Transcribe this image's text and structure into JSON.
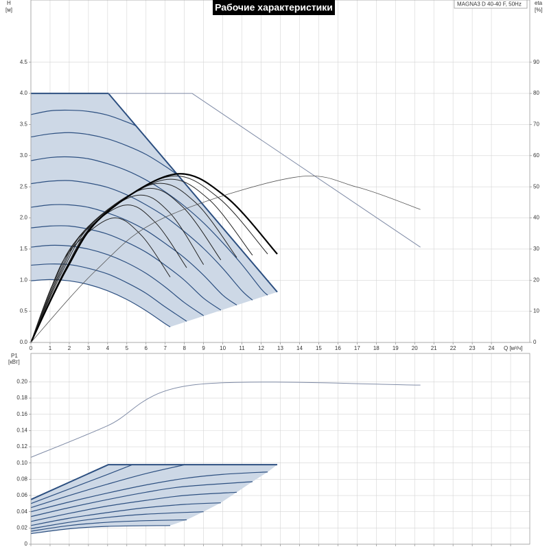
{
  "chart_data": [
    {
      "type": "line",
      "title": "Рабочие характеристики",
      "annotation": "MAGNA3 D 40-40 F, 50Hz",
      "ylabel": "H",
      "ylabel_unit": "[м]",
      "y2label": "eta",
      "y2label_unit": "[%]",
      "xlabel": "Q [м³/ч]",
      "xlim": [
        0,
        26
      ],
      "ylim": [
        0,
        5.5
      ],
      "y2lim": [
        0,
        110
      ],
      "grid": true,
      "xticks": [
        0,
        1,
        2,
        3,
        4,
        5,
        6,
        7,
        8,
        9,
        10,
        11,
        12,
        13,
        14,
        15,
        16,
        17,
        18,
        19,
        20,
        21,
        22,
        23,
        24
      ],
      "yticks": [
        {
          "value": 0,
          "label": "0.0"
        },
        0.5,
        {
          "value": 1,
          "label": "1.0"
        },
        1.5,
        {
          "value": 2,
          "label": "2.0"
        },
        2.5,
        {
          "value": 3,
          "label": "3.0"
        },
        3.5,
        {
          "value": 4,
          "label": "4.0"
        },
        4.5
      ],
      "y2ticks": [
        0,
        10,
        20,
        30,
        40,
        50,
        60,
        70,
        80,
        90
      ],
      "series": [
        {
          "kind": "area",
          "color": "#cdd8e6",
          "x": [
            0,
            4.04,
            12.84,
            7.26,
            7,
            6,
            5,
            4,
            3,
            2,
            1,
            0
          ],
          "values": [
            4,
            4,
            0.81,
            0.25,
            0.3,
            0.51,
            0.69,
            0.83,
            0.93,
            0.99,
            1.01,
            0.99
          ]
        },
        {
          "color": "#2c4f80",
          "width": 1.2,
          "smooth": true,
          "x": [
            0,
            1,
            2,
            3,
            4,
            5,
            6,
            7,
            7.26
          ],
          "values": [
            0.99,
            1.01,
            0.99,
            0.93,
            0.83,
            0.69,
            0.51,
            0.3,
            0.25
          ]
        },
        {
          "color": "#2c4f80",
          "width": 1.2,
          "smooth": true,
          "x": [
            0,
            1,
            2,
            3,
            4,
            5,
            6,
            7,
            8.12
          ],
          "values": [
            1.24,
            1.26,
            1.25,
            1.19,
            1.1,
            0.96,
            0.79,
            0.57,
            0.34
          ]
        },
        {
          "color": "#2c4f80",
          "width": 1.2,
          "smooth": true,
          "x": [
            0,
            1,
            2,
            3,
            4,
            5,
            6,
            7,
            8,
            9
          ],
          "values": [
            1.53,
            1.56,
            1.55,
            1.5,
            1.41,
            1.28,
            1.11,
            0.89,
            0.64,
            0.43
          ]
        },
        {
          "color": "#2c4f80",
          "width": 1.2,
          "smooth": true,
          "x": [
            0,
            1,
            2,
            3,
            4,
            5,
            6,
            7,
            8,
            9,
            9.9
          ],
          "values": [
            1.84,
            1.87,
            1.87,
            1.82,
            1.74,
            1.61,
            1.45,
            1.24,
            1.0,
            0.71,
            0.52
          ]
        },
        {
          "color": "#2c4f80",
          "width": 1.2,
          "smooth": true,
          "x": [
            0,
            1,
            2,
            3,
            4,
            5,
            6,
            7,
            8,
            9,
            10,
            10.73
          ],
          "values": [
            2.17,
            2.21,
            2.21,
            2.17,
            2.08,
            1.96,
            1.8,
            1.59,
            1.36,
            1.08,
            0.76,
            0.6
          ]
        },
        {
          "color": "#2c4f80",
          "width": 1.2,
          "smooth": true,
          "x": [
            0,
            1,
            2,
            3,
            4,
            5,
            6,
            7,
            8,
            9,
            10,
            11,
            11.55
          ],
          "values": [
            2.55,
            2.59,
            2.6,
            2.56,
            2.49,
            2.37,
            2.21,
            2.02,
            1.78,
            1.51,
            1.19,
            0.83,
            0.68
          ]
        },
        {
          "color": "#2c4f80",
          "width": 1.2,
          "smooth": true,
          "x": [
            0,
            1,
            2,
            3,
            4,
            5,
            6,
            7,
            8,
            9,
            10,
            11,
            12,
            12.34
          ],
          "values": [
            2.92,
            2.97,
            2.98,
            2.95,
            2.87,
            2.76,
            2.61,
            2.42,
            2.19,
            1.92,
            1.6,
            1.25,
            0.86,
            0.76
          ]
        },
        {
          "color": "#2c4f80",
          "width": 1.2,
          "smooth": true,
          "x": [
            0,
            1,
            2,
            3,
            4,
            5,
            6,
            7,
            7.65
          ],
          "values": [
            3.3,
            3.35,
            3.37,
            3.34,
            3.27,
            3.16,
            3.02,
            2.83,
            2.69
          ]
        },
        {
          "color": "#2c4f80",
          "width": 1.2,
          "smooth": true,
          "x": [
            0,
            1,
            2,
            3,
            4,
            5,
            5.47
          ],
          "values": [
            3.66,
            3.72,
            3.73,
            3.71,
            3.65,
            3.54,
            3.48
          ]
        },
        {
          "color": "#2c4f80",
          "width": 2,
          "smooth": false,
          "x": [
            0,
            4.04,
            12.84
          ],
          "values": [
            4,
            4,
            0.81
          ]
        },
        {
          "color": "#7f8ba6",
          "width": 1,
          "smooth": false,
          "x": [
            4.04,
            8.4,
            20.3
          ],
          "values": [
            4,
            4,
            1.53
          ]
        },
        {
          "axis": "y2",
          "color": "#222222",
          "width": 1,
          "smooth": true,
          "x": [
            0,
            1.05,
            2.1,
            4.2,
            5.73,
            7.26
          ],
          "values": [
            0,
            17.5,
            29.9,
            39.9,
            34.6,
            21
          ]
        },
        {
          "axis": "y2",
          "color": "#222222",
          "width": 1,
          "smooth": true,
          "x": [
            0,
            1.2,
            2.4,
            4.8,
            6.46,
            8.12
          ],
          "values": [
            0,
            19.3,
            33,
            44,
            38.7,
            24
          ]
        },
        {
          "axis": "y2",
          "color": "#222222",
          "width": 1,
          "smooth": true,
          "x": [
            0,
            1.35,
            2.7,
            5.4,
            7.2,
            9.0
          ],
          "values": [
            0,
            20.6,
            35.3,
            47.1,
            41.9,
            25
          ]
        },
        {
          "axis": "y2",
          "color": "#222222",
          "width": 1,
          "smooth": true,
          "x": [
            0,
            1.48,
            2.95,
            5.9,
            7.9,
            9.9
          ],
          "values": [
            0,
            21.6,
            37,
            49.3,
            43.6,
            26.5
          ]
        },
        {
          "axis": "y2",
          "color": "#222222",
          "width": 1,
          "smooth": true,
          "x": [
            0,
            1.6,
            3.2,
            6.4,
            8.57,
            10.73
          ],
          "values": [
            0,
            22.3,
            38.2,
            50.9,
            45,
            27.3
          ]
        },
        {
          "axis": "y2",
          "color": "#222222",
          "width": 1,
          "smooth": true,
          "x": [
            0,
            1.73,
            3.45,
            6.9,
            9.23,
            11.55
          ],
          "values": [
            0,
            22.8,
            39.2,
            52.2,
            46.2,
            28
          ]
        },
        {
          "axis": "y2",
          "color": "#222222",
          "width": 1,
          "smooth": true,
          "x": [
            0,
            1.8,
            3.6,
            7.2,
            9.77,
            12.34
          ],
          "values": [
            0,
            23.3,
            40,
            53.3,
            46.5,
            28.4
          ]
        },
        {
          "axis": "y2",
          "color": "#000000",
          "width": 2.2,
          "smooth": true,
          "x": [
            0,
            1.86,
            3.72,
            7.44,
            10.14,
            12.84
          ],
          "values": [
            0,
            23.6,
            40.5,
            54,
            46.9,
            28.4
          ]
        },
        {
          "axis": "y2",
          "color": "#555555",
          "width": 0.8,
          "smooth": true,
          "x": [
            0,
            3.4,
            6.85,
            13.7,
            17,
            20.3
          ],
          "values": [
            0,
            23.2,
            39.8,
            53,
            49.9,
            42.7
          ]
        }
      ]
    },
    {
      "type": "line",
      "ylabel": "P1",
      "ylabel_unit": "[кВт]",
      "xlim": [
        0,
        26
      ],
      "ylim": [
        0,
        0.235
      ],
      "grid": true,
      "xtick_labels": false,
      "xticks": [
        0,
        1,
        2,
        3,
        4,
        5,
        6,
        7,
        8,
        9,
        10,
        11,
        12,
        13,
        14,
        15,
        16,
        17,
        18,
        19,
        20,
        21,
        22,
        23,
        24,
        25
      ],
      "yticks": [
        0,
        0.02,
        0.04,
        0.06,
        0.08,
        {
          "value": 0.1,
          "label": "0.10"
        },
        0.12,
        0.14,
        0.16,
        0.18,
        {
          "value": 0.2,
          "label": "0.20"
        }
      ],
      "series": [
        {
          "kind": "area",
          "color": "#cdd8e6",
          "x": [
            0,
            4.04,
            12.84,
            12.34,
            11.55,
            10.73,
            9.9,
            9.0,
            8.12,
            7.26,
            4,
            2,
            0
          ],
          "values": [
            0.055,
            0.098,
            0.098,
            0.089,
            0.077,
            0.064,
            0.051,
            0.04,
            0.03,
            0.023,
            0.022,
            0.019,
            0.013
          ]
        },
        {
          "color": "#2c4f80",
          "width": 1.2,
          "smooth": true,
          "x": [
            0,
            2,
            4,
            7.26
          ],
          "values": [
            0.013,
            0.019,
            0.022,
            0.023
          ]
        },
        {
          "color": "#2c4f80",
          "width": 1.2,
          "smooth": true,
          "x": [
            0,
            2,
            4,
            6,
            8.12
          ],
          "values": [
            0.016,
            0.023,
            0.027,
            0.029,
            0.03
          ]
        },
        {
          "color": "#2c4f80",
          "width": 1.2,
          "smooth": true,
          "x": [
            0,
            2,
            4,
            6,
            9.0
          ],
          "values": [
            0.019,
            0.027,
            0.033,
            0.037,
            0.04
          ]
        },
        {
          "color": "#2c4f80",
          "width": 1.2,
          "smooth": true,
          "x": [
            0,
            2,
            4,
            6,
            8,
            9.9
          ],
          "values": [
            0.023,
            0.032,
            0.039,
            0.045,
            0.049,
            0.051
          ]
        },
        {
          "color": "#2c4f80",
          "width": 1.2,
          "smooth": true,
          "x": [
            0,
            2,
            4,
            6,
            8,
            10.73
          ],
          "values": [
            0.028,
            0.038,
            0.047,
            0.054,
            0.06,
            0.064
          ]
        },
        {
          "color": "#2c4f80",
          "width": 1.2,
          "smooth": true,
          "x": [
            0,
            2,
            4,
            6,
            8,
            11.55
          ],
          "values": [
            0.034,
            0.045,
            0.055,
            0.064,
            0.071,
            0.077
          ]
        },
        {
          "color": "#2c4f80",
          "width": 1.2,
          "smooth": true,
          "x": [
            0,
            2,
            4,
            6,
            8,
            10,
            12.34
          ],
          "values": [
            0.04,
            0.052,
            0.063,
            0.073,
            0.081,
            0.086,
            0.089
          ]
        },
        {
          "color": "#2c4f80",
          "width": 1.2,
          "smooth": true,
          "x": [
            0,
            2,
            4,
            6,
            8.05
          ],
          "values": [
            0.045,
            0.06,
            0.074,
            0.087,
            0.098
          ]
        },
        {
          "color": "#2c4f80",
          "width": 1.2,
          "smooth": true,
          "x": [
            0,
            2,
            4,
            5.3
          ],
          "values": [
            0.05,
            0.068,
            0.086,
            0.098
          ]
        },
        {
          "color": "#2c4f80",
          "width": 2,
          "smooth": false,
          "x": [
            0,
            4.04,
            12.84
          ],
          "values": [
            0.055,
            0.098,
            0.098
          ]
        },
        {
          "color": "#7f8ba6",
          "width": 1,
          "smooth": true,
          "x": [
            0,
            4,
            8.4,
            20.3
          ],
          "values": [
            0.107,
            0.146,
            0.196,
            0.196
          ]
        }
      ]
    }
  ]
}
